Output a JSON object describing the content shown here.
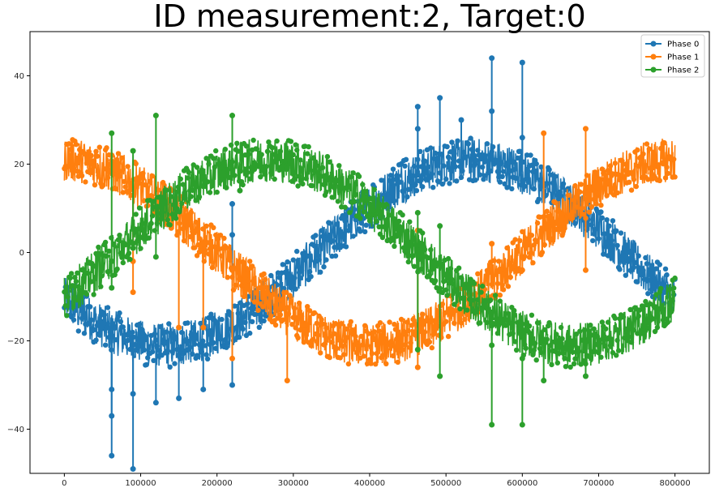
{
  "chart_data": {
    "type": "line",
    "title": "ID measurement:2, Target:0",
    "xlabel": "",
    "ylabel": "",
    "xlim": [
      -45000,
      845000
    ],
    "ylim": [
      -50,
      50
    ],
    "xticks": [
      0,
      100000,
      200000,
      300000,
      400000,
      500000,
      600000,
      700000,
      800000
    ],
    "xtick_labels": [
      "0",
      "100000",
      "200000",
      "300000",
      "400000",
      "500000",
      "600000",
      "700000",
      "800000"
    ],
    "yticks": [
      -40,
      -20,
      0,
      20,
      40
    ],
    "ytick_labels": [
      "−40",
      "−20",
      "0",
      "20",
      "40"
    ],
    "grid": false,
    "legend_position": "top-right",
    "noise_band": 5,
    "series": [
      {
        "name": "Phase 0",
        "color": "#1f77b4",
        "phase_deg": 210,
        "amplitude": 21,
        "spikes": [
          [
            62000,
            -46
          ],
          [
            62000,
            -37
          ],
          [
            62000,
            -31
          ],
          [
            90000,
            -49
          ],
          [
            90000,
            -32
          ],
          [
            120000,
            -34
          ],
          [
            150000,
            -33
          ],
          [
            182000,
            -31
          ],
          [
            220000,
            -30
          ],
          [
            220000,
            4
          ],
          [
            220000,
            11
          ],
          [
            463000,
            28
          ],
          [
            463000,
            33
          ],
          [
            492000,
            35
          ],
          [
            520000,
            30
          ],
          [
            560000,
            44
          ],
          [
            560000,
            32
          ],
          [
            600000,
            43
          ],
          [
            600000,
            26
          ]
        ]
      },
      {
        "name": "Phase 1",
        "color": "#ff7f0e",
        "phase_deg": 90,
        "amplitude": 21,
        "spikes": [
          [
            62000,
            22
          ],
          [
            90000,
            -9
          ],
          [
            90000,
            -2
          ],
          [
            150000,
            -17
          ],
          [
            182000,
            -17
          ],
          [
            182000,
            2
          ],
          [
            220000,
            -24
          ],
          [
            220000,
            -4
          ],
          [
            292000,
            -29
          ],
          [
            463000,
            -26
          ],
          [
            463000,
            5
          ],
          [
            560000,
            2
          ],
          [
            600000,
            -4
          ],
          [
            628000,
            27
          ],
          [
            683000,
            28
          ],
          [
            683000,
            -4
          ]
        ]
      },
      {
        "name": "Phase 2",
        "color": "#2ca02c",
        "phase_deg": 330,
        "amplitude": 21,
        "spikes": [
          [
            62000,
            27
          ],
          [
            62000,
            -8
          ],
          [
            62000,
            -2
          ],
          [
            90000,
            23
          ],
          [
            90000,
            1
          ],
          [
            120000,
            31
          ],
          [
            120000,
            -1
          ],
          [
            182000,
            15
          ],
          [
            220000,
            31
          ],
          [
            230000,
            14
          ],
          [
            463000,
            -22
          ],
          [
            463000,
            9
          ],
          [
            492000,
            -28
          ],
          [
            492000,
            6
          ],
          [
            560000,
            -39
          ],
          [
            560000,
            -21
          ],
          [
            600000,
            -39
          ],
          [
            600000,
            -24
          ],
          [
            628000,
            -29
          ],
          [
            683000,
            -28
          ]
        ]
      }
    ]
  }
}
